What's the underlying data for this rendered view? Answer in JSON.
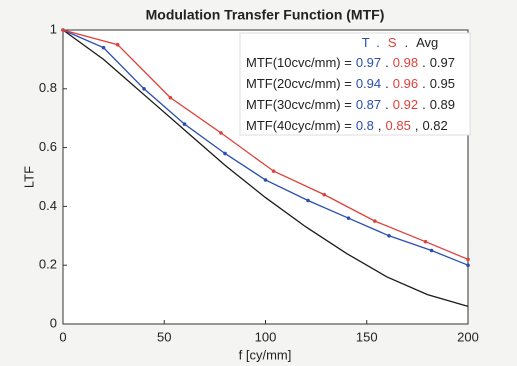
{
  "chart_data": {
    "type": "line",
    "title": "Modulation Transfer Function (MTF)",
    "x_label": "f [cy/mm]",
    "y_label": "LTF",
    "xlim": [
      0,
      200
    ],
    "xticks": [
      0,
      50,
      100,
      150,
      200
    ],
    "ylim": [
      0,
      1
    ],
    "yticks": [
      0,
      0.2,
      0.4,
      0.6,
      0.8,
      1
    ],
    "series": [
      {
        "color": "#1a1a1a",
        "markers": false,
        "x": [
          0,
          20,
          40,
          60,
          80,
          100,
          120,
          140,
          160,
          180,
          200
        ],
        "values": [
          1,
          0.9,
          0.78,
          0.66,
          0.54,
          0.43,
          0.33,
          0.24,
          0.16,
          0.1,
          0.06
        ]
      },
      {
        "color": "#2a4fb0",
        "markers": true,
        "x": [
          0,
          20,
          40,
          60,
          80,
          100,
          121,
          141,
          161,
          182,
          200
        ],
        "values": [
          1,
          0.94,
          0.8,
          0.68,
          0.58,
          0.49,
          0.42,
          0.36,
          0.3,
          0.25,
          0.2
        ]
      },
      {
        "color": "#e0403a",
        "markers": true,
        "x": [
          0,
          27,
          53,
          78,
          104,
          129,
          154,
          179,
          200
        ],
        "values": [
          1,
          0.95,
          0.77,
          0.65,
          0.52,
          0.44,
          0.35,
          0.28,
          0.22
        ]
      }
    ],
    "annotation": {
      "header": [
        {
          "text": "T",
          "color": "#2a4fb0"
        },
        {
          "text": ".",
          "color": "#2a4fb0"
        },
        {
          "text": "S",
          "color": "#e0403a"
        },
        {
          "text": ".",
          "color": "#222"
        },
        {
          "text": "Avg",
          "color": "#222"
        }
      ],
      "colors": [
        "#2a4fb0",
        "#e0403a",
        "#222"
      ],
      "rows": [
        {
          "label": "MTF(10cvc/mm) =",
          "values": [
            0.97,
            0.98,
            0.97
          ],
          "separators": [
            ".",
            "."
          ]
        },
        {
          "label": "MTF(20cvc/mm) =",
          "values": [
            0.94,
            0.96,
            0.95
          ],
          "separators": [
            ".",
            "."
          ]
        },
        {
          "label": "MTF(30cvc/mm) =",
          "values": [
            0.87,
            0.92,
            0.89
          ],
          "separators": [
            ".",
            "."
          ]
        },
        {
          "label": "MTF(40cyc/mm) =",
          "values": [
            0.8,
            0.85,
            0.82
          ],
          "separators": [
            ",",
            ","
          ]
        }
      ]
    }
  }
}
